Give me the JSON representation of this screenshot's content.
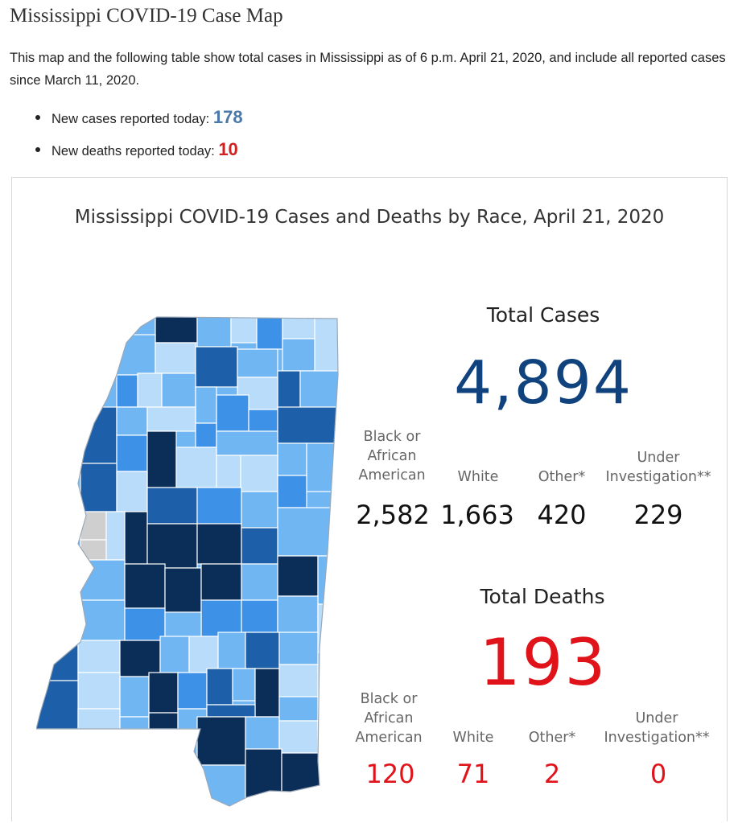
{
  "header": {
    "title": "Mississippi COVID-19 Case Map",
    "intro": "This map and the following table show total cases in Mississippi as of 6 p.m. April 21, 2020, and include all reported cases since March 11, 2020."
  },
  "summary": {
    "new_cases_label": "New cases reported today:",
    "new_cases_value": "178",
    "new_deaths_label": "New deaths reported today:",
    "new_deaths_value": "10"
  },
  "dashboard": {
    "title": "Mississippi COVID-19 Cases and Deaths by Race, April 21, 2020",
    "cases": {
      "heading": "Total Cases",
      "total": "4,894",
      "breakdown": [
        {
          "label": "Black or African American",
          "value": "2,582"
        },
        {
          "label": "White",
          "value": "1,663"
        },
        {
          "label": "Other*",
          "value": "420"
        },
        {
          "label": "Under Investigation**",
          "value": "229"
        }
      ]
    },
    "deaths": {
      "heading": "Total Deaths",
      "total": "193",
      "breakdown": [
        {
          "label": "Black or African American",
          "value": "120"
        },
        {
          "label": "White",
          "value": "71"
        },
        {
          "label": "Other*",
          "value": "2"
        },
        {
          "label": "Under Investigation**",
          "value": "0"
        }
      ]
    }
  },
  "colors": {
    "very_dark": "#0b2e59",
    "dark": "#1d5fa8",
    "medium": "#3d92e8",
    "light": "#70b6f2",
    "pale": "#b9dcfa",
    "no_data": "#cfcfcf",
    "death_red": "#e0121a",
    "case_blue": "#10427e"
  }
}
